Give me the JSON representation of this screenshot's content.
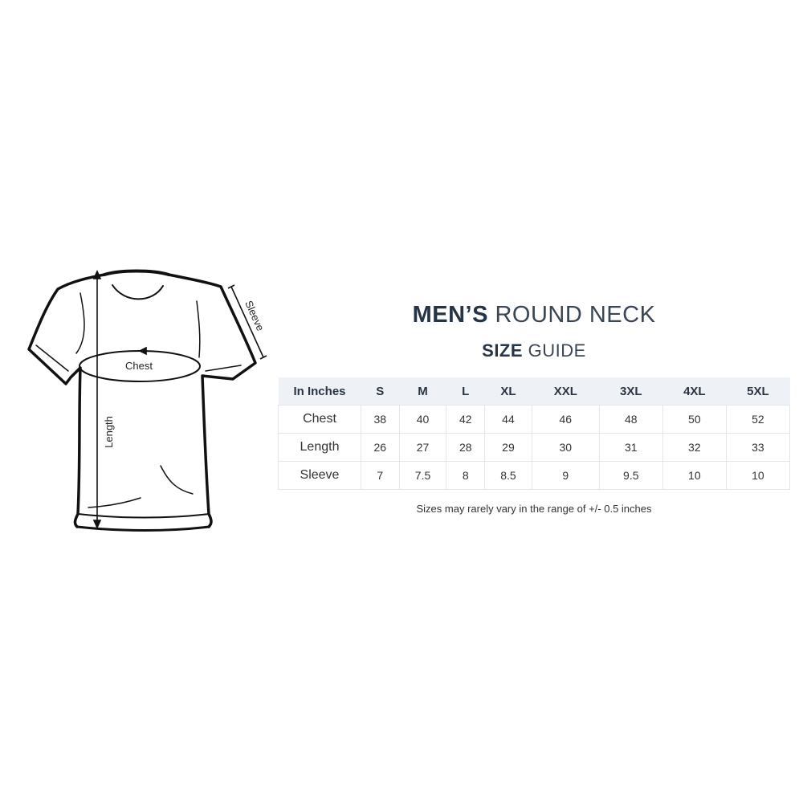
{
  "diagram": {
    "labels": {
      "chest": "Chest",
      "length": "Length",
      "sleeve": "Sleeve"
    }
  },
  "heading": {
    "line1_bold": "MEN’S",
    "line1_light": "ROUND NECK",
    "line2_bold": "SIZE",
    "line2_light": "GUIDE"
  },
  "table": {
    "headers": [
      "In Inches",
      "S",
      "M",
      "L",
      "XL",
      "XXL",
      "3XL",
      "4XL",
      "5XL"
    ],
    "rows": [
      {
        "label": "Chest",
        "values": [
          "38",
          "40",
          "42",
          "44",
          "46",
          "48",
          "50",
          "52"
        ]
      },
      {
        "label": "Length",
        "values": [
          "26",
          "27",
          "28",
          "29",
          "30",
          "31",
          "32",
          "33"
        ]
      },
      {
        "label": "Sleeve",
        "values": [
          "7",
          "7.5",
          "8",
          "8.5",
          "9",
          "9.5",
          "10",
          "10"
        ]
      }
    ]
  },
  "note": "Sizes may rarely vary in the range of +/- 0.5 inches"
}
